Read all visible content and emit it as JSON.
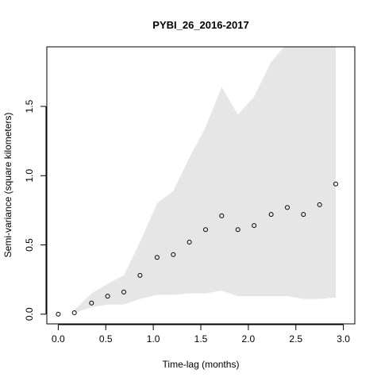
{
  "chart_data": {
    "type": "scatter",
    "title": "PYBI_26_2016-2017",
    "xlabel": "Time-lag (months)",
    "ylabel": "Semi-variance (square kilometers)",
    "xlim": [
      -0.12,
      3.12
    ],
    "ylim": [
      -0.07,
      1.93
    ],
    "xticks": [
      0.0,
      0.5,
      1.0,
      1.5,
      2.0,
      2.5,
      3.0
    ],
    "xtick_labels": [
      "0.0",
      "0.5",
      "1.0",
      "1.5",
      "2.0",
      "2.5",
      "3.0"
    ],
    "yticks": [
      0.0,
      0.5,
      1.0,
      1.5
    ],
    "ytick_labels": [
      "0.0",
      "0.5",
      "1.0",
      "1.5"
    ],
    "grid": false,
    "series": [
      {
        "x": [
          0.0,
          0.17,
          0.35,
          0.52,
          0.69,
          0.86,
          1.04,
          1.21,
          1.38,
          1.55,
          1.72,
          1.89,
          2.06,
          2.24,
          2.41,
          2.58,
          2.75,
          2.92
        ],
        "y": [
          0.0,
          0.01,
          0.08,
          0.13,
          0.16,
          0.28,
          0.41,
          0.43,
          0.52,
          0.61,
          0.71,
          0.61,
          0.64,
          0.72,
          0.77,
          0.72,
          0.79,
          0.94
        ]
      }
    ],
    "envelope": {
      "x": [
        0.17,
        0.35,
        0.52,
        0.69,
        0.86,
        1.04,
        1.21,
        1.38,
        1.55,
        1.72,
        1.89,
        2.06,
        2.24,
        2.41,
        2.58,
        2.75,
        2.92
      ],
      "upper": [
        0.03,
        0.15,
        0.22,
        0.28,
        0.52,
        0.8,
        0.89,
        1.13,
        1.35,
        1.64,
        1.44,
        1.57,
        1.82,
        1.96,
        1.93,
        1.96,
        1.96
      ],
      "lower": [
        0.01,
        0.05,
        0.07,
        0.07,
        0.11,
        0.14,
        0.14,
        0.15,
        0.15,
        0.17,
        0.13,
        0.13,
        0.13,
        0.13,
        0.11,
        0.11,
        0.12
      ],
      "fill": "#e6e6e6"
    },
    "marker_color": "#000000"
  }
}
